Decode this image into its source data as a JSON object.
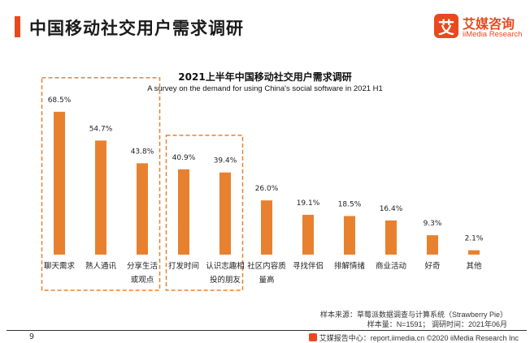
{
  "header": {
    "title": "中国移动社交用户需求调研",
    "accent_color": "#e8491d"
  },
  "logo": {
    "glyph": "艾",
    "name": "艾媒咨询",
    "sub": "iiMedia Research",
    "color": "#e8491d"
  },
  "chart_data": {
    "type": "bar",
    "title": "2021上半年中国移动社交用户需求调研",
    "subtitle": "A survey on the demand for using China's  social software in 2021 H1",
    "categories": [
      [
        "聊天需求"
      ],
      [
        "熟人通讯"
      ],
      [
        "分享生活",
        "或观点"
      ],
      [
        "打发时间"
      ],
      [
        "认识志趣相",
        "投的朋友"
      ],
      [
        "社区内容质",
        "量高"
      ],
      [
        "寻找伴侣"
      ],
      [
        "排解情绪"
      ],
      [
        "商业活动"
      ],
      [
        "好奇"
      ],
      [
        "其他"
      ]
    ],
    "values": [
      68.5,
      54.7,
      43.8,
      40.9,
      39.4,
      26.0,
      19.1,
      18.5,
      16.4,
      9.3,
      2.1
    ],
    "value_labels": [
      "68.5%",
      "54.7%",
      "43.8%",
      "40.9%",
      "39.4%",
      "26.0%",
      "19.1%",
      "18.5%",
      "16.4%",
      "9.3%",
      "2.1%"
    ],
    "ylim": [
      0,
      70
    ],
    "bar_color": "#e8812f",
    "highlight_color": "#e8812f",
    "highlight_groups": [
      [
        0,
        2
      ],
      [
        3,
        4
      ]
    ],
    "grid": false,
    "legend": "none"
  },
  "notes": {
    "source": "样本来源：草莓派数据调查与计算系统（Strawberry Pie）",
    "sample": "样本量：N=1591；  调研时间：2021年06月"
  },
  "footer": {
    "page": "9",
    "text": "艾媒报告中心：report.iimedia.cn  ©2020  iiMedia Research  Inc"
  }
}
